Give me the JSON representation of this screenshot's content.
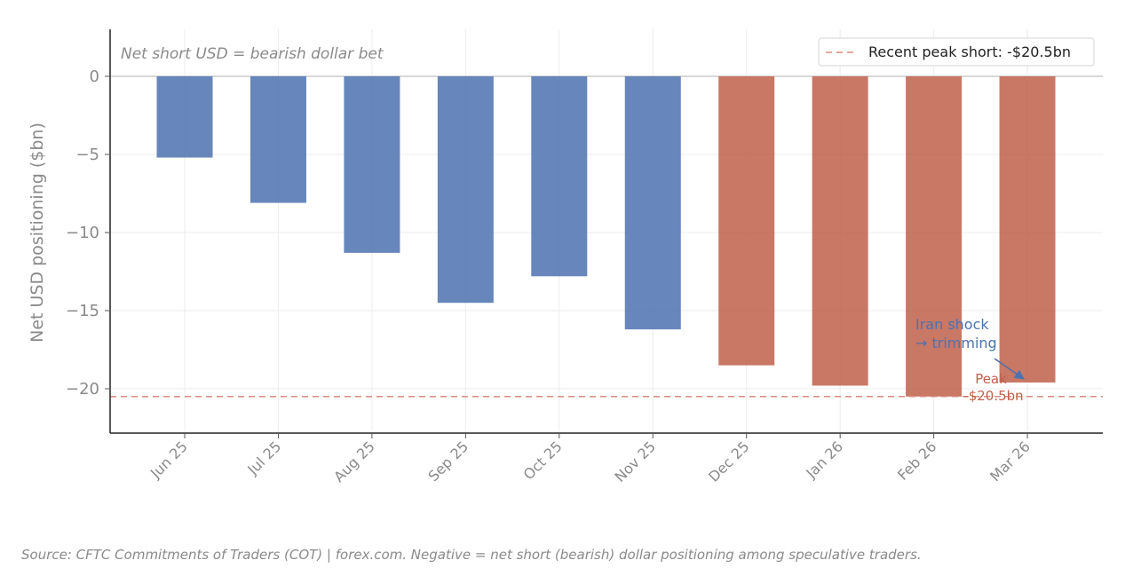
{
  "chart_data": {
    "type": "bar",
    "categories": [
      "Jun 25",
      "Jul 25",
      "Aug 25",
      "Sep 25",
      "Oct 25",
      "Nov 25",
      "Dec 25",
      "Jan 26",
      "Feb 26",
      "Mar 26"
    ],
    "values": [
      -5.2,
      -8.1,
      -11.3,
      -14.5,
      -12.8,
      -16.2,
      -18.5,
      -19.8,
      -20.5,
      -19.6
    ],
    "bar_colors": [
      "#4c72b0",
      "#4c72b0",
      "#4c72b0",
      "#4c72b0",
      "#4c72b0",
      "#4c72b0",
      "#c0604a",
      "#c0604a",
      "#c0604a",
      "#c0604a"
    ],
    "ylabel": "Net USD positioning ($bn)",
    "ylim": [
      -23,
      3
    ],
    "yticks": [
      0,
      -5,
      -10,
      -15,
      -20
    ],
    "ytick_labels": [
      "0",
      "−5",
      "−10",
      "−15",
      "−20"
    ],
    "grid": true,
    "corner_note": "Net short USD = bearish dollar bet",
    "reference_line": {
      "value": -20.5,
      "label": "Recent peak short: -$20.5bn",
      "color": "#d98b7f",
      "style": "dashed"
    },
    "legend_position": "top-right",
    "annotations": [
      {
        "text_lines": [
          "Iran shock",
          "→ trimming"
        ],
        "color": "#4c72b0",
        "arrow_to_category": "Mar 26",
        "arrow_to_value": -19.6
      },
      {
        "text_lines": [
          "Peak",
          "-$20.5bn"
        ],
        "color": "#c0604a"
      }
    ]
  },
  "footer": {
    "source": "Source: CFTC Commitments of Traders (COT) | forex.com. Negative = net short (bearish) dollar positioning among speculative traders."
  }
}
